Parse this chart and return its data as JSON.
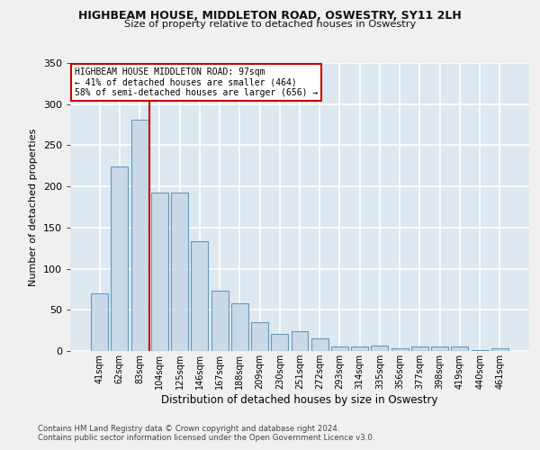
{
  "title": "HIGHBEAM HOUSE, MIDDLETON ROAD, OSWESTRY, SY11 2LH",
  "subtitle": "Size of property relative to detached houses in Oswestry",
  "xlabel": "Distribution of detached houses by size in Oswestry",
  "ylabel": "Number of detached properties",
  "categories": [
    "41sqm",
    "62sqm",
    "83sqm",
    "104sqm",
    "125sqm",
    "146sqm",
    "167sqm",
    "188sqm",
    "209sqm",
    "230sqm",
    "251sqm",
    "272sqm",
    "293sqm",
    "314sqm",
    "335sqm",
    "356sqm",
    "377sqm",
    "398sqm",
    "419sqm",
    "440sqm",
    "461sqm"
  ],
  "values": [
    70,
    224,
    281,
    193,
    192,
    133,
    73,
    58,
    35,
    21,
    24,
    15,
    5,
    5,
    7,
    3,
    5,
    5,
    5,
    1,
    3
  ],
  "bar_color": "#c9d9e8",
  "bar_edge_color": "#6699bb",
  "background_color": "#dde8f0",
  "grid_color": "#ffffff",
  "annotation_text_line1": "HIGHBEAM HOUSE MIDDLETON ROAD: 97sqm",
  "annotation_text_line2": "← 41% of detached houses are smaller (464)",
  "annotation_text_line3": "58% of semi-detached houses are larger (656) →",
  "annotation_box_color": "#ffffff",
  "annotation_border_color": "#cc0000",
  "red_line_color": "#cc0000",
  "footer_line1": "Contains HM Land Registry data © Crown copyright and database right 2024.",
  "footer_line2": "Contains public sector information licensed under the Open Government Licence v3.0.",
  "ylim": [
    0,
    350
  ],
  "yticks": [
    0,
    50,
    100,
    150,
    200,
    250,
    300,
    350
  ],
  "fig_bg": "#f0f0f0"
}
